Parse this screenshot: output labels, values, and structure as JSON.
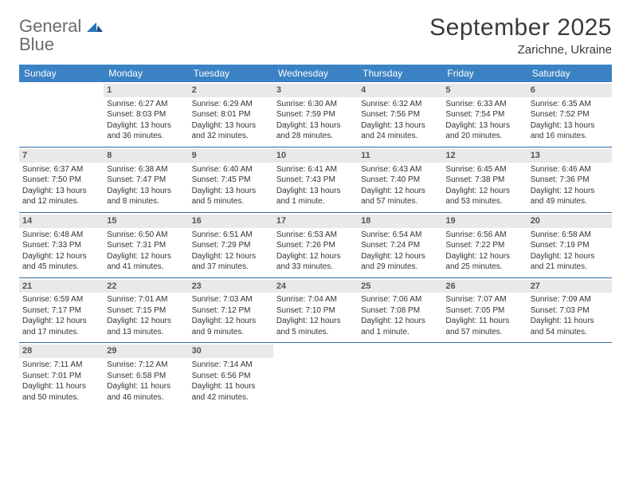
{
  "logo": {
    "word1": "General",
    "word2": "Blue"
  },
  "title": "September 2025",
  "location": "Zarichne, Ukraine",
  "colors": {
    "header_bg": "#3b82c4",
    "header_text": "#ffffff",
    "week_border": "#2f6aa3",
    "daynum_bg": "#e9e9e9",
    "body_text": "#333333",
    "logo_gray": "#6b6b6b",
    "logo_blue": "#2a73b8",
    "background": "#ffffff"
  },
  "typography": {
    "title_fontsize": 30,
    "location_fontsize": 15,
    "dayheader_fontsize": 12,
    "cell_fontsize": 10,
    "daynum_fontsize": 11
  },
  "day_names": [
    "Sunday",
    "Monday",
    "Tuesday",
    "Wednesday",
    "Thursday",
    "Friday",
    "Saturday"
  ],
  "weeks": [
    [
      null,
      {
        "n": "1",
        "sr": "Sunrise: 6:27 AM",
        "ss": "Sunset: 8:03 PM",
        "dl": "Daylight: 13 hours and 36 minutes."
      },
      {
        "n": "2",
        "sr": "Sunrise: 6:29 AM",
        "ss": "Sunset: 8:01 PM",
        "dl": "Daylight: 13 hours and 32 minutes."
      },
      {
        "n": "3",
        "sr": "Sunrise: 6:30 AM",
        "ss": "Sunset: 7:59 PM",
        "dl": "Daylight: 13 hours and 28 minutes."
      },
      {
        "n": "4",
        "sr": "Sunrise: 6:32 AM",
        "ss": "Sunset: 7:56 PM",
        "dl": "Daylight: 13 hours and 24 minutes."
      },
      {
        "n": "5",
        "sr": "Sunrise: 6:33 AM",
        "ss": "Sunset: 7:54 PM",
        "dl": "Daylight: 13 hours and 20 minutes."
      },
      {
        "n": "6",
        "sr": "Sunrise: 6:35 AM",
        "ss": "Sunset: 7:52 PM",
        "dl": "Daylight: 13 hours and 16 minutes."
      }
    ],
    [
      {
        "n": "7",
        "sr": "Sunrise: 6:37 AM",
        "ss": "Sunset: 7:50 PM",
        "dl": "Daylight: 13 hours and 12 minutes."
      },
      {
        "n": "8",
        "sr": "Sunrise: 6:38 AM",
        "ss": "Sunset: 7:47 PM",
        "dl": "Daylight: 13 hours and 8 minutes."
      },
      {
        "n": "9",
        "sr": "Sunrise: 6:40 AM",
        "ss": "Sunset: 7:45 PM",
        "dl": "Daylight: 13 hours and 5 minutes."
      },
      {
        "n": "10",
        "sr": "Sunrise: 6:41 AM",
        "ss": "Sunset: 7:43 PM",
        "dl": "Daylight: 13 hours and 1 minute."
      },
      {
        "n": "11",
        "sr": "Sunrise: 6:43 AM",
        "ss": "Sunset: 7:40 PM",
        "dl": "Daylight: 12 hours and 57 minutes."
      },
      {
        "n": "12",
        "sr": "Sunrise: 6:45 AM",
        "ss": "Sunset: 7:38 PM",
        "dl": "Daylight: 12 hours and 53 minutes."
      },
      {
        "n": "13",
        "sr": "Sunrise: 6:46 AM",
        "ss": "Sunset: 7:36 PM",
        "dl": "Daylight: 12 hours and 49 minutes."
      }
    ],
    [
      {
        "n": "14",
        "sr": "Sunrise: 6:48 AM",
        "ss": "Sunset: 7:33 PM",
        "dl": "Daylight: 12 hours and 45 minutes."
      },
      {
        "n": "15",
        "sr": "Sunrise: 6:50 AM",
        "ss": "Sunset: 7:31 PM",
        "dl": "Daylight: 12 hours and 41 minutes."
      },
      {
        "n": "16",
        "sr": "Sunrise: 6:51 AM",
        "ss": "Sunset: 7:29 PM",
        "dl": "Daylight: 12 hours and 37 minutes."
      },
      {
        "n": "17",
        "sr": "Sunrise: 6:53 AM",
        "ss": "Sunset: 7:26 PM",
        "dl": "Daylight: 12 hours and 33 minutes."
      },
      {
        "n": "18",
        "sr": "Sunrise: 6:54 AM",
        "ss": "Sunset: 7:24 PM",
        "dl": "Daylight: 12 hours and 29 minutes."
      },
      {
        "n": "19",
        "sr": "Sunrise: 6:56 AM",
        "ss": "Sunset: 7:22 PM",
        "dl": "Daylight: 12 hours and 25 minutes."
      },
      {
        "n": "20",
        "sr": "Sunrise: 6:58 AM",
        "ss": "Sunset: 7:19 PM",
        "dl": "Daylight: 12 hours and 21 minutes."
      }
    ],
    [
      {
        "n": "21",
        "sr": "Sunrise: 6:59 AM",
        "ss": "Sunset: 7:17 PM",
        "dl": "Daylight: 12 hours and 17 minutes."
      },
      {
        "n": "22",
        "sr": "Sunrise: 7:01 AM",
        "ss": "Sunset: 7:15 PM",
        "dl": "Daylight: 12 hours and 13 minutes."
      },
      {
        "n": "23",
        "sr": "Sunrise: 7:03 AM",
        "ss": "Sunset: 7:12 PM",
        "dl": "Daylight: 12 hours and 9 minutes."
      },
      {
        "n": "24",
        "sr": "Sunrise: 7:04 AM",
        "ss": "Sunset: 7:10 PM",
        "dl": "Daylight: 12 hours and 5 minutes."
      },
      {
        "n": "25",
        "sr": "Sunrise: 7:06 AM",
        "ss": "Sunset: 7:08 PM",
        "dl": "Daylight: 12 hours and 1 minute."
      },
      {
        "n": "26",
        "sr": "Sunrise: 7:07 AM",
        "ss": "Sunset: 7:05 PM",
        "dl": "Daylight: 11 hours and 57 minutes."
      },
      {
        "n": "27",
        "sr": "Sunrise: 7:09 AM",
        "ss": "Sunset: 7:03 PM",
        "dl": "Daylight: 11 hours and 54 minutes."
      }
    ],
    [
      {
        "n": "28",
        "sr": "Sunrise: 7:11 AM",
        "ss": "Sunset: 7:01 PM",
        "dl": "Daylight: 11 hours and 50 minutes."
      },
      {
        "n": "29",
        "sr": "Sunrise: 7:12 AM",
        "ss": "Sunset: 6:58 PM",
        "dl": "Daylight: 11 hours and 46 minutes."
      },
      {
        "n": "30",
        "sr": "Sunrise: 7:14 AM",
        "ss": "Sunset: 6:56 PM",
        "dl": "Daylight: 11 hours and 42 minutes."
      },
      null,
      null,
      null,
      null
    ]
  ]
}
